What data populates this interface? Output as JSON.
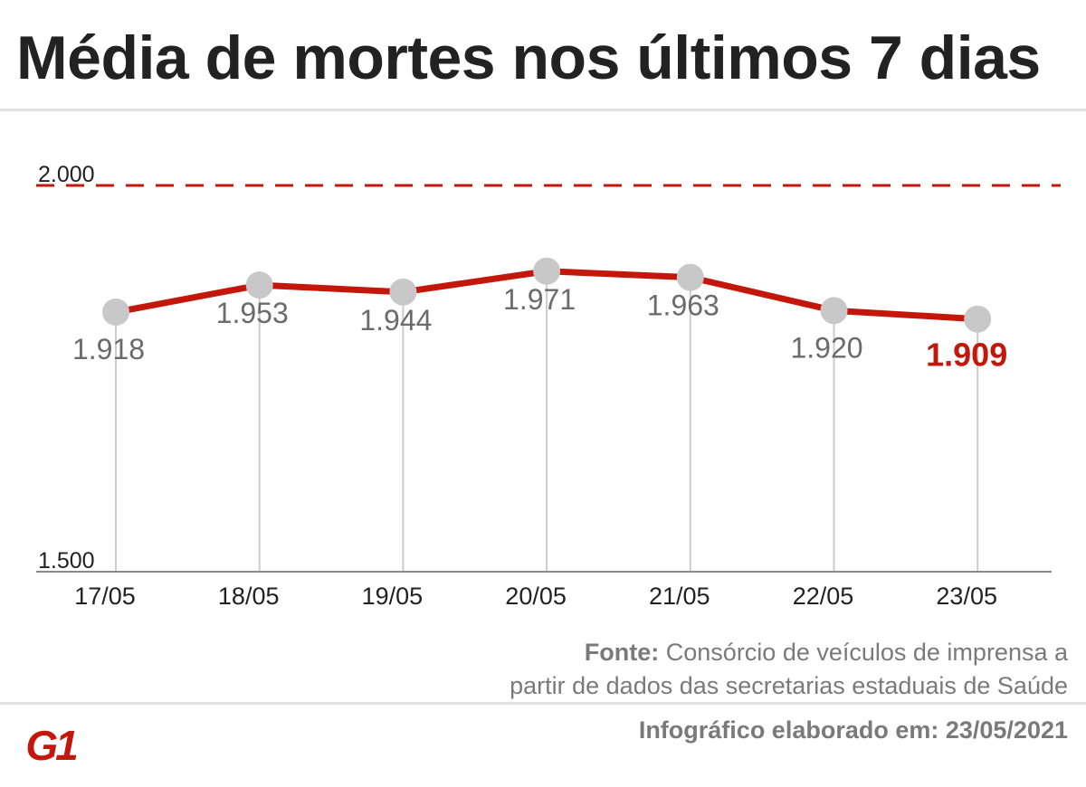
{
  "title": "Média de mortes nos últimos 7 dias",
  "source": {
    "label": "Fonte:",
    "line1_text": "Consórcio de veículos de imprensa a",
    "line2_text": "partir de dados das secretarias estaduais de Saúde"
  },
  "footer": {
    "date_text": "Infográfico elaborado em: 23/05/2021"
  },
  "logo": {
    "text": "G1",
    "color": "#c4170c"
  },
  "colors": {
    "line": "#c4170c",
    "point": "#c8c8c8",
    "label": "#6b6b6b",
    "highlight": "#c4170c",
    "axis": "#8a8a8a",
    "text": "#222222"
  },
  "chart_data": {
    "type": "line",
    "x": [
      "17/05",
      "18/05",
      "19/05",
      "20/05",
      "21/05",
      "22/05",
      "23/05"
    ],
    "y": [
      1918,
      1953,
      1944,
      1971,
      1963,
      1920,
      1909
    ],
    "value_labels": [
      "1.918",
      "1.953",
      "1.944",
      "1.971",
      "1.963",
      "1.920",
      "1.909"
    ],
    "highlight_index": 6,
    "ylim": [
      1500,
      2000
    ],
    "y_ticks": [
      {
        "value": 2000,
        "label": "2.000"
      },
      {
        "value": 1500,
        "label": "1.500"
      }
    ],
    "reference_line": {
      "value": 2000,
      "style": "dashed"
    },
    "grid": false,
    "legend": "none"
  }
}
